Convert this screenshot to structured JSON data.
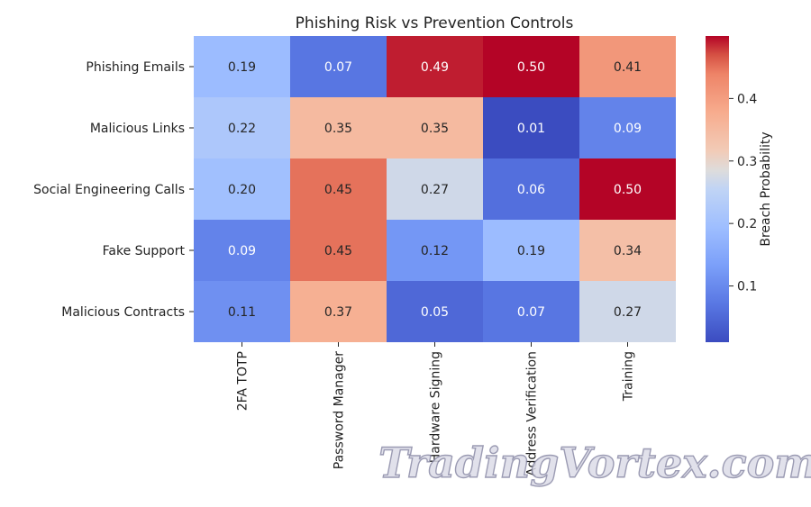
{
  "chart_data": {
    "type": "heatmap",
    "title": "Phishing Risk vs Prevention Controls",
    "rows": [
      "Phishing Emails",
      "Malicious Links",
      "Social Engineering Calls",
      "Fake Support",
      "Malicious Contracts"
    ],
    "columns": [
      "2FA TOTP",
      "Password Manager",
      "Hardware Signing",
      "Address Verification",
      "Training"
    ],
    "values": [
      [
        0.19,
        0.07,
        0.49,
        0.5,
        0.41
      ],
      [
        0.22,
        0.35,
        0.35,
        0.01,
        0.09
      ],
      [
        0.2,
        0.45,
        0.27,
        0.06,
        0.5
      ],
      [
        0.09,
        0.45,
        0.12,
        0.19,
        0.34
      ],
      [
        0.11,
        0.37,
        0.05,
        0.07,
        0.27
      ]
    ],
    "colorbar": {
      "label": "Breach Probability",
      "range": [
        0.01,
        0.5
      ],
      "ticks": [
        0.1,
        0.2,
        0.3,
        0.4
      ],
      "colormap": "coolwarm"
    }
  },
  "watermark": "TradingVortex.com"
}
